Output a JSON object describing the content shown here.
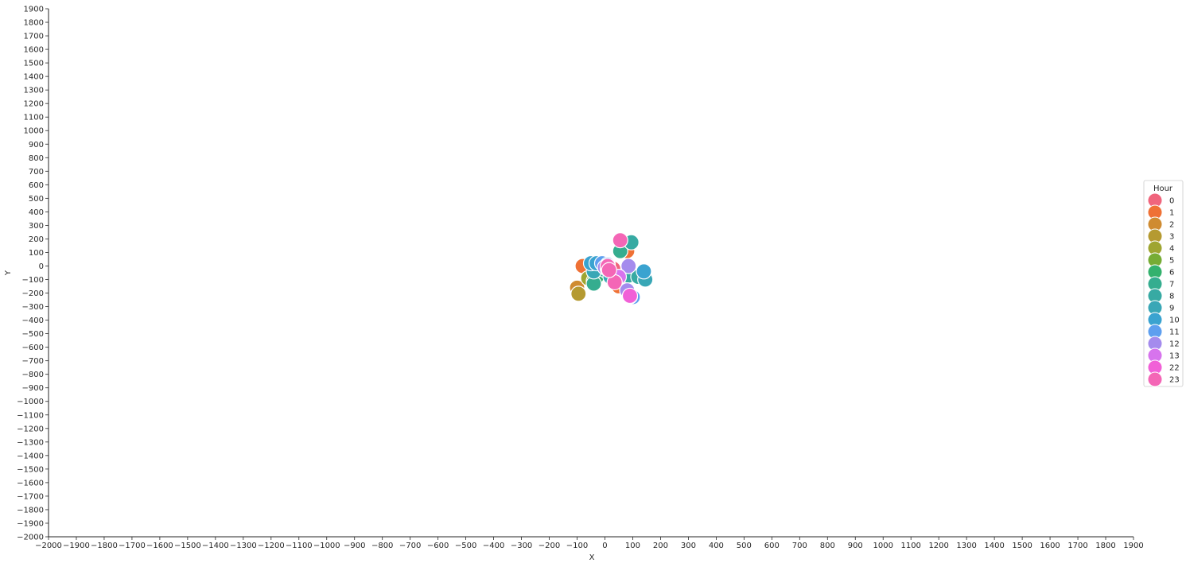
{
  "chart_data": {
    "type": "scatter",
    "xlabel": "X",
    "ylabel": "Y",
    "xlim": [
      -2000,
      1900
    ],
    "ylim": [
      -2000,
      1900
    ],
    "xticks": [
      -2000,
      -1900,
      -1800,
      -1700,
      -1600,
      -1500,
      -1400,
      -1300,
      -1200,
      -1100,
      -1000,
      -900,
      -800,
      -700,
      -600,
      -500,
      -400,
      -300,
      -200,
      -100,
      0,
      100,
      200,
      300,
      400,
      500,
      600,
      700,
      800,
      900,
      1000,
      1100,
      1200,
      1300,
      1400,
      1500,
      1600,
      1700,
      1800,
      1900
    ],
    "yticks": [
      -2000,
      -1900,
      -1800,
      -1700,
      -1600,
      -1500,
      -1400,
      -1300,
      -1200,
      -1100,
      -1000,
      -900,
      -800,
      -700,
      -600,
      -500,
      -400,
      -300,
      -200,
      -100,
      0,
      100,
      200,
      300,
      400,
      500,
      600,
      700,
      800,
      900,
      1000,
      1100,
      1200,
      1300,
      1400,
      1500,
      1600,
      1700,
      1800,
      1900
    ],
    "grid": false,
    "legend": {
      "title": "Hour",
      "position": "right"
    },
    "series": [
      {
        "name": "0",
        "color": "#f0657d",
        "points": [
          [
            15,
            0
          ],
          [
            30,
            -20
          ]
        ]
      },
      {
        "name": "1",
        "color": "#ef7135",
        "points": [
          [
            -80,
            0
          ],
          [
            80,
            110
          ],
          [
            50,
            -150
          ]
        ]
      },
      {
        "name": "2",
        "color": "#cf8b31",
        "points": [
          [
            -100,
            -160
          ]
        ]
      },
      {
        "name": "3",
        "color": "#b59a31",
        "points": [
          [
            -95,
            -205
          ]
        ]
      },
      {
        "name": "4",
        "color": "#9fa531",
        "points": [
          [
            -60,
            -90
          ]
        ]
      },
      {
        "name": "5",
        "color": "#76ac34",
        "points": [
          [
            -40,
            -110
          ]
        ]
      },
      {
        "name": "6",
        "color": "#33b16d",
        "points": [
          [
            -30,
            -80
          ]
        ]
      },
      {
        "name": "7",
        "color": "#35ad8f",
        "points": [
          [
            -40,
            -130
          ],
          [
            55,
            110
          ]
        ]
      },
      {
        "name": "8",
        "color": "#37aaa3",
        "points": [
          [
            95,
            175
          ],
          [
            85,
            -70
          ],
          [
            120,
            -80
          ],
          [
            0,
            -30
          ]
        ]
      },
      {
        "name": "9",
        "color": "#39a7b6",
        "points": [
          [
            145,
            -100
          ],
          [
            -40,
            -40
          ],
          [
            20,
            -80
          ]
        ]
      },
      {
        "name": "10",
        "color": "#3aa3d0",
        "points": [
          [
            140,
            -40
          ],
          [
            -50,
            20
          ],
          [
            -30,
            20
          ]
        ]
      },
      {
        "name": "11",
        "color": "#5e9fef",
        "points": [
          [
            -10,
            20
          ],
          [
            10,
            10
          ],
          [
            100,
            -230
          ]
        ]
      },
      {
        "name": "12",
        "color": "#a48bed",
        "points": [
          [
            85,
            0
          ],
          [
            80,
            -180
          ],
          [
            0,
            -10
          ]
        ]
      },
      {
        "name": "13",
        "color": "#d774ed",
        "points": [
          [
            90,
            -225
          ],
          [
            50,
            -80
          ]
        ]
      },
      {
        "name": "22",
        "color": "#f160d7",
        "points": [
          [
            90,
            -220
          ],
          [
            10,
            -20
          ]
        ]
      },
      {
        "name": "23",
        "color": "#f466b6",
        "points": [
          [
            55,
            190
          ],
          [
            35,
            -120
          ],
          [
            10,
            0
          ],
          [
            15,
            -30
          ]
        ]
      }
    ]
  }
}
